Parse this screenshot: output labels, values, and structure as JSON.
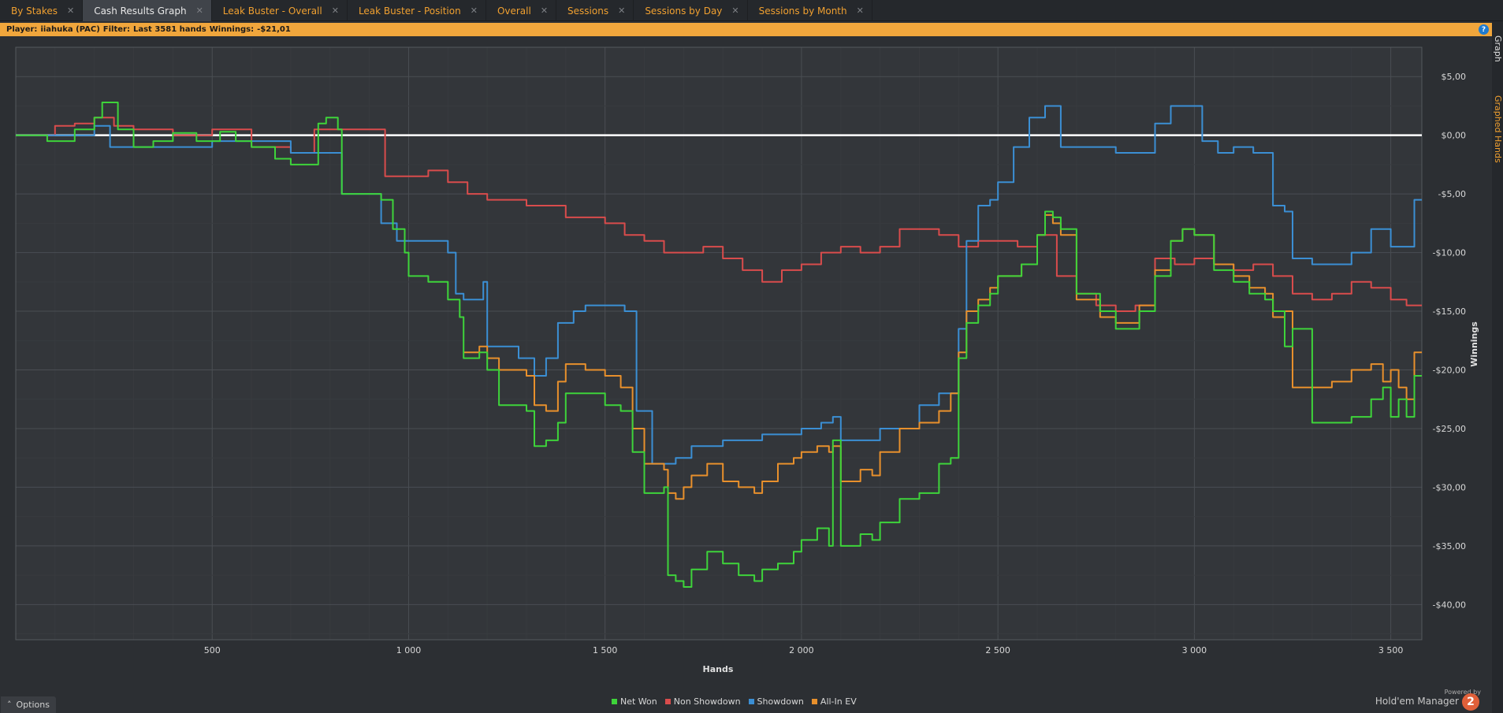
{
  "tabs": [
    {
      "label": "By Stakes",
      "active": false
    },
    {
      "label": "Cash Results Graph",
      "active": true
    },
    {
      "label": "Leak Buster - Overall",
      "active": false
    },
    {
      "label": "Leak Buster - Position",
      "active": false
    },
    {
      "label": "Overall",
      "active": false
    },
    {
      "label": "Sessions",
      "active": false
    },
    {
      "label": "Sessions by Day",
      "active": false
    },
    {
      "label": "Sessions by Month",
      "active": false
    }
  ],
  "filter_bar": {
    "player_label": "Player:",
    "player_value": "iiahuka (PAC)",
    "filter_label": "Filter:",
    "filter_value": "Last 3581 hands",
    "winnings_label": "Winnings:",
    "winnings_value": "-$21,01",
    "help_icon": "?"
  },
  "right_strip": {
    "tab1": "Graph",
    "tab2": "Graphed Hands"
  },
  "options_button": "Options",
  "brand": {
    "powered_by": "Powered by",
    "name": "Hold'em Manager",
    "logo_text": "2"
  },
  "colors": {
    "net_won": "#3ed43a",
    "non_showdown": "#d94c4c",
    "showdown": "#3b8fd4",
    "all_in_ev": "#e8902c",
    "zero_line": "#ffffff",
    "accent": "#f0a030"
  },
  "chart_data": {
    "type": "line",
    "xlabel": "Hands",
    "ylabel": "Winnings",
    "xlim": [
      0,
      3581
    ],
    "ylim": [
      -43,
      7.5
    ],
    "x_ticks": [
      500,
      1000,
      1500,
      2000,
      2500,
      3000,
      3500
    ],
    "x_tick_labels": [
      "500",
      "1 000",
      "1 500",
      "2 000",
      "2 500",
      "3 000",
      "3 500"
    ],
    "y_ticks": [
      5,
      0,
      -5,
      -10,
      -15,
      -20,
      -25,
      -30,
      -35,
      -40
    ],
    "y_tick_labels": [
      "$5,00",
      "$0,00",
      "-$5,00",
      "-$10,00",
      "-$15,00",
      "-$20,00",
      "-$25,00",
      "-$30,00",
      "-$35,00",
      "-$40,00"
    ],
    "grid": true,
    "legend": "bottom-center",
    "series": [
      {
        "name": "Net Won",
        "color_key": "net_won",
        "x": [
          0,
          80,
          150,
          200,
          220,
          260,
          300,
          350,
          400,
          460,
          520,
          560,
          600,
          660,
          700,
          770,
          790,
          820,
          830,
          870,
          930,
          960,
          990,
          1000,
          1050,
          1100,
          1130,
          1140,
          1180,
          1200,
          1230,
          1300,
          1320,
          1350,
          1380,
          1400,
          1450,
          1500,
          1540,
          1570,
          1600,
          1640,
          1650,
          1660,
          1680,
          1700,
          1720,
          1760,
          1800,
          1840,
          1880,
          1900,
          1940,
          1980,
          2000,
          2040,
          2070,
          2080,
          2100,
          2150,
          2180,
          2200,
          2250,
          2300,
          2350,
          2380,
          2400,
          2420,
          2450,
          2480,
          2500,
          2560,
          2600,
          2620,
          2640,
          2660,
          2700,
          2760,
          2800,
          2860,
          2900,
          2940,
          2970,
          3000,
          3050,
          3100,
          3140,
          3180,
          3200,
          3230,
          3250,
          3300,
          3350,
          3400,
          3450,
          3480,
          3500,
          3520,
          3540,
          3560,
          3581
        ],
        "y": [
          0,
          -0.5,
          0.5,
          1.5,
          2.8,
          0.5,
          -1.0,
          -0.5,
          0.2,
          -0.5,
          0.3,
          -0.5,
          -1.0,
          -2.0,
          -2.5,
          1.0,
          1.5,
          0.5,
          -5.0,
          -5.0,
          -5.5,
          -8.0,
          -10.0,
          -12.0,
          -12.5,
          -14.0,
          -15.5,
          -19.0,
          -18.5,
          -20.0,
          -23.0,
          -23.5,
          -26.5,
          -26.0,
          -24.5,
          -22.0,
          -22.0,
          -23.0,
          -23.5,
          -27.0,
          -30.5,
          -30.5,
          -30.0,
          -37.5,
          -38.0,
          -38.5,
          -37.0,
          -35.5,
          -36.5,
          -37.5,
          -38.0,
          -37.0,
          -36.5,
          -35.5,
          -34.5,
          -33.5,
          -35.0,
          -26.0,
          -35.0,
          -34.0,
          -34.5,
          -33.0,
          -31.0,
          -30.5,
          -28.0,
          -27.5,
          -19.0,
          -16.0,
          -14.5,
          -13.5,
          -12.0,
          -11.0,
          -8.5,
          -6.5,
          -7.0,
          -8.0,
          -13.5,
          -15.0,
          -16.5,
          -15.0,
          -12.0,
          -9.0,
          -8.0,
          -8.5,
          -11.5,
          -12.5,
          -13.5,
          -14.0,
          -15.0,
          -18.0,
          -16.5,
          -24.5,
          -24.5,
          -24.0,
          -22.5,
          -21.5,
          -24.0,
          -22.5,
          -24.0,
          -20.5,
          -21.0
        ]
      },
      {
        "name": "Non Showdown",
        "color_key": "non_showdown",
        "x": [
          0,
          100,
          150,
          200,
          250,
          300,
          400,
          500,
          600,
          700,
          760,
          800,
          850,
          900,
          940,
          960,
          1000,
          1050,
          1100,
          1150,
          1200,
          1300,
          1400,
          1500,
          1550,
          1600,
          1650,
          1700,
          1750,
          1800,
          1850,
          1900,
          1950,
          2000,
          2050,
          2100,
          2150,
          2200,
          2250,
          2300,
          2350,
          2400,
          2450,
          2500,
          2550,
          2600,
          2650,
          2700,
          2750,
          2800,
          2850,
          2900,
          2950,
          3000,
          3050,
          3100,
          3150,
          3200,
          3250,
          3300,
          3350,
          3400,
          3450,
          3500,
          3540,
          3581
        ],
        "y": [
          0,
          0.8,
          1.0,
          1.5,
          0.8,
          0.5,
          0,
          0.5,
          -1.0,
          -1.5,
          0.5,
          0.5,
          0.5,
          0.5,
          -3.5,
          -3.5,
          -3.5,
          -3.0,
          -4.0,
          -5.0,
          -5.5,
          -6.0,
          -7.0,
          -7.5,
          -8.5,
          -9.0,
          -10.0,
          -10.0,
          -9.5,
          -10.5,
          -11.5,
          -12.5,
          -11.5,
          -11.0,
          -10.0,
          -9.5,
          -10.0,
          -9.5,
          -8.0,
          -8.0,
          -8.5,
          -9.5,
          -9.0,
          -9.0,
          -9.5,
          -8.5,
          -12.0,
          -13.5,
          -14.5,
          -15.0,
          -14.5,
          -10.5,
          -11.0,
          -10.5,
          -11.0,
          -11.5,
          -11.0,
          -12.0,
          -13.5,
          -14.0,
          -13.5,
          -12.5,
          -13.0,
          -14.0,
          -14.5,
          -16.0
        ]
      },
      {
        "name": "Showdown",
        "color_key": "showdown",
        "x": [
          0,
          200,
          240,
          300,
          500,
          700,
          800,
          830,
          900,
          930,
          970,
          1050,
          1100,
          1120,
          1140,
          1190,
          1200,
          1280,
          1320,
          1350,
          1380,
          1420,
          1450,
          1500,
          1550,
          1580,
          1620,
          1640,
          1680,
          1720,
          1800,
          1900,
          2000,
          2050,
          2080,
          2100,
          2200,
          2300,
          2350,
          2400,
          2420,
          2450,
          2480,
          2500,
          2540,
          2580,
          2620,
          2660,
          2700,
          2800,
          2860,
          2900,
          2940,
          3000,
          3020,
          3060,
          3100,
          3150,
          3200,
          3230,
          3250,
          3300,
          3350,
          3400,
          3450,
          3500,
          3540,
          3560,
          3581
        ],
        "y": [
          0,
          0.8,
          -1.0,
          -1.0,
          -0.5,
          -1.5,
          -1.5,
          -5.0,
          -5.0,
          -7.5,
          -9.0,
          -9.0,
          -10.0,
          -13.5,
          -14.0,
          -12.5,
          -18.0,
          -19.0,
          -20.5,
          -19.0,
          -16.0,
          -15.0,
          -14.5,
          -14.5,
          -15.0,
          -23.5,
          -28.0,
          -28.0,
          -27.5,
          -26.5,
          -26.0,
          -25.5,
          -25.0,
          -24.5,
          -24.0,
          -26.0,
          -25.0,
          -23.0,
          -22.0,
          -16.5,
          -9.0,
          -6.0,
          -5.5,
          -4.0,
          -1.0,
          1.5,
          2.5,
          -1.0,
          -1.0,
          -1.5,
          -1.5,
          1.0,
          2.5,
          2.5,
          -0.5,
          -1.5,
          -1.0,
          -1.5,
          -6.0,
          -6.5,
          -10.5,
          -11.0,
          -11.0,
          -10.0,
          -8.0,
          -9.5,
          -9.5,
          -5.5,
          -5.5
        ]
      },
      {
        "name": "All-In EV",
        "color_key": "all_in_ev",
        "x": [
          1140,
          1180,
          1200,
          1230,
          1300,
          1320,
          1350,
          1380,
          1400,
          1450,
          1500,
          1540,
          1570,
          1600,
          1640,
          1650,
          1660,
          1680,
          1700,
          1720,
          1760,
          1800,
          1840,
          1880,
          1900,
          1940,
          1980,
          2000,
          2040,
          2070,
          2080,
          2100,
          2150,
          2180,
          2200,
          2250,
          2300,
          2350,
          2380,
          2400,
          2420,
          2450,
          2480,
          2500,
          2560,
          2600,
          2620,
          2640,
          2660,
          2700,
          2760,
          2800,
          2860,
          2900,
          2940,
          2970,
          3000,
          3050,
          3100,
          3140,
          3180,
          3200,
          3230,
          3250,
          3300,
          3350,
          3400,
          3450,
          3480,
          3500,
          3520,
          3540,
          3560,
          3581
        ],
        "y": [
          -18.5,
          -18.0,
          -19.0,
          -20.0,
          -20.5,
          -23.0,
          -23.5,
          -21.0,
          -19.5,
          -20.0,
          -20.5,
          -21.5,
          -25.0,
          -28.0,
          -28.0,
          -28.5,
          -30.5,
          -31.0,
          -30.0,
          -29.0,
          -28.0,
          -29.5,
          -30.0,
          -30.5,
          -29.5,
          -28.0,
          -27.5,
          -27.0,
          -26.5,
          -27.0,
          -26.5,
          -29.5,
          -28.5,
          -29.0,
          -27.0,
          -25.0,
          -24.5,
          -23.5,
          -22.0,
          -18.5,
          -15.0,
          -14.0,
          -13.0,
          -12.0,
          -11.0,
          -8.5,
          -6.8,
          -7.5,
          -8.5,
          -14.0,
          -15.5,
          -16.0,
          -14.5,
          -11.5,
          -9.0,
          -8.0,
          -8.5,
          -11.0,
          -12.0,
          -13.0,
          -13.5,
          -15.5,
          -15.0,
          -21.5,
          -21.5,
          -21.0,
          -20.0,
          -19.5,
          -21.0,
          -20.0,
          -21.5,
          -22.5,
          -18.5,
          -19.0
        ]
      }
    ]
  }
}
